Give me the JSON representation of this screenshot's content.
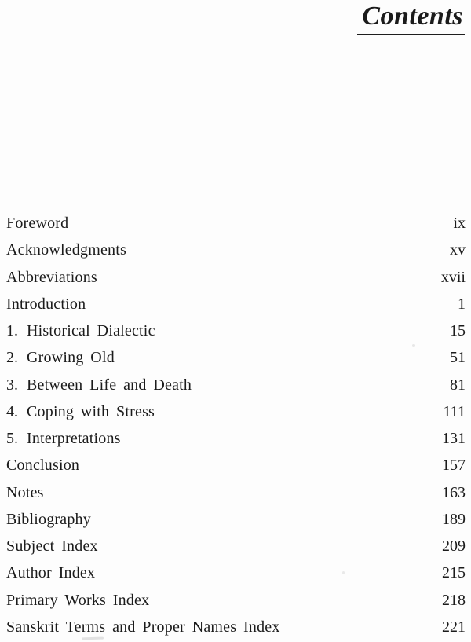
{
  "page": {
    "title": "Contents",
    "text_color": "#1b1b1b",
    "background": "#fdfdfd",
    "rule_color": "#1e1e1e"
  },
  "toc": {
    "entries": [
      {
        "number": "",
        "label": "Foreword",
        "page": "ix"
      },
      {
        "number": "",
        "label": "Acknowledgments",
        "page": "xv"
      },
      {
        "number": "",
        "label": "Abbreviations",
        "page": "xvii"
      },
      {
        "number": "",
        "label": "Introduction",
        "page": "1"
      },
      {
        "number": "1.",
        "label": "Historical Dialectic",
        "page": "15"
      },
      {
        "number": "2.",
        "label": "Growing Old",
        "page": "51"
      },
      {
        "number": "3.",
        "label": "Between Life and Death",
        "page": "81"
      },
      {
        "number": "4.",
        "label": "Coping with Stress",
        "page": "111"
      },
      {
        "number": "5.",
        "label": "Interpretations",
        "page": "131"
      },
      {
        "number": "",
        "label": "Conclusion",
        "page": "157"
      },
      {
        "number": "",
        "label": "Notes",
        "page": "163"
      },
      {
        "number": "",
        "label": "Bibliography",
        "page": "189"
      },
      {
        "number": "",
        "label": "Subject Index",
        "page": "209"
      },
      {
        "number": "",
        "label": "Author Index",
        "page": "215"
      },
      {
        "number": "",
        "label": "Primary Works Index",
        "page": "218"
      },
      {
        "number": "",
        "label": "Sanskrit Terms and Proper Names Index",
        "page": "221"
      }
    ]
  }
}
